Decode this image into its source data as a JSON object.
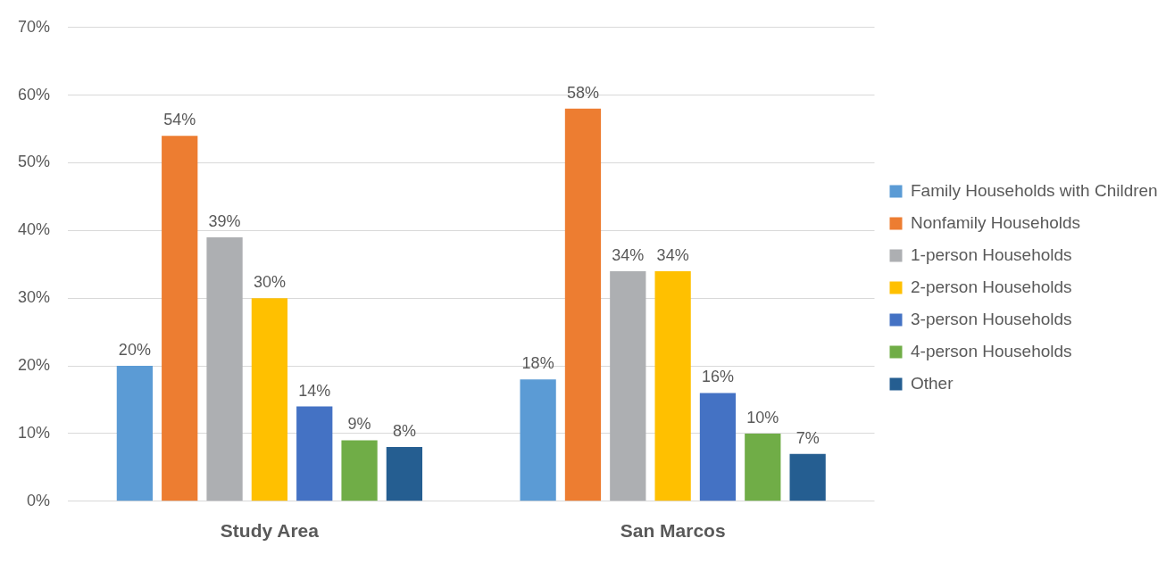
{
  "chart_data": {
    "type": "bar",
    "categories": [
      "Study Area",
      "San Marcos"
    ],
    "series": [
      {
        "name": "Family Households with Children",
        "color": "#5b9bd5",
        "values": [
          20,
          18
        ],
        "value_labels": [
          "20%",
          "18%"
        ]
      },
      {
        "name": "Nonfamily Households",
        "color": "#ed7d31",
        "values": [
          54,
          58
        ],
        "value_labels": [
          "54%",
          "58%"
        ]
      },
      {
        "name": "1-person Households",
        "color": "#adafb2",
        "values": [
          39,
          34
        ],
        "value_labels": [
          "39%",
          "34%"
        ]
      },
      {
        "name": "2-person Households",
        "color": "#ffc000",
        "values": [
          30,
          34
        ],
        "value_labels": [
          "30%",
          "34%"
        ]
      },
      {
        "name": "3-person Households",
        "color": "#4472c4",
        "values": [
          14,
          16
        ],
        "value_labels": [
          "14%",
          "16%"
        ]
      },
      {
        "name": "4-person Households",
        "color": "#70ad47",
        "values": [
          9,
          10
        ],
        "value_labels": [
          "9%",
          "10%"
        ]
      },
      {
        "name": "Other",
        "color": "#255e91",
        "values": [
          8,
          7
        ],
        "value_labels": [
          "8%",
          "7%"
        ]
      }
    ],
    "ylim": [
      0,
      70
    ],
    "yticks": [
      {
        "value": 0,
        "label": "0%"
      },
      {
        "value": 10,
        "label": "10%"
      },
      {
        "value": 20,
        "label": "20%"
      },
      {
        "value": 30,
        "label": "30%"
      },
      {
        "value": 40,
        "label": "40%"
      },
      {
        "value": 50,
        "label": "50%"
      },
      {
        "value": 60,
        "label": "60%"
      },
      {
        "value": 70,
        "label": "70%"
      }
    ],
    "grid": "y",
    "legend": "right"
  }
}
